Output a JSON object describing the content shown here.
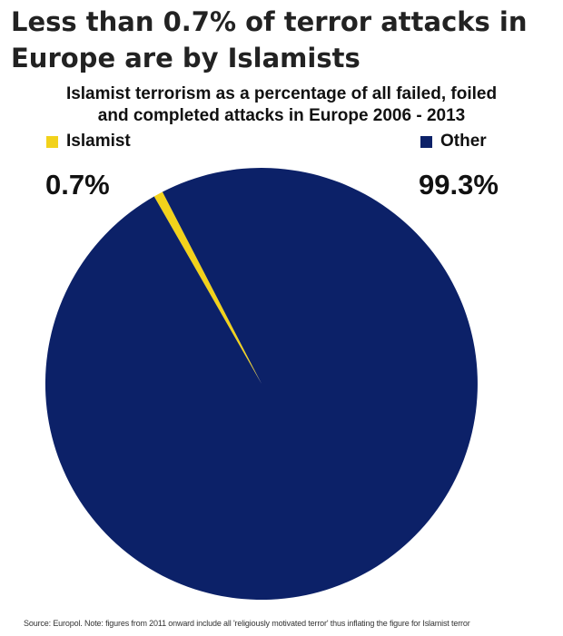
{
  "headline": {
    "line1": "Less than 0.7% of terror attacks in",
    "line2": "Europe are by Islamists"
  },
  "subtitle": {
    "line1": "Islamist terrorism as a percentage of all failed, foiled",
    "line2": "and completed attacks in Europe 2006 - 2013"
  },
  "chart_data": {
    "type": "pie",
    "title": "Islamist terrorism as a percentage of all failed, foiled and completed attacks in Europe 2006 - 2013",
    "legend_placement": "top",
    "slices": [
      {
        "label": "Islamist",
        "value": 0.7,
        "value_label": "0.7%",
        "color": "#f2d21b"
      },
      {
        "label": "Other",
        "value": 99.3,
        "value_label": "99.3%",
        "color": "#0c2168"
      }
    ]
  },
  "source": "Source: Europol. Note: figures from 2011 onward include all 'religiously motivated terror' thus inflating the figure for Islamist terror"
}
